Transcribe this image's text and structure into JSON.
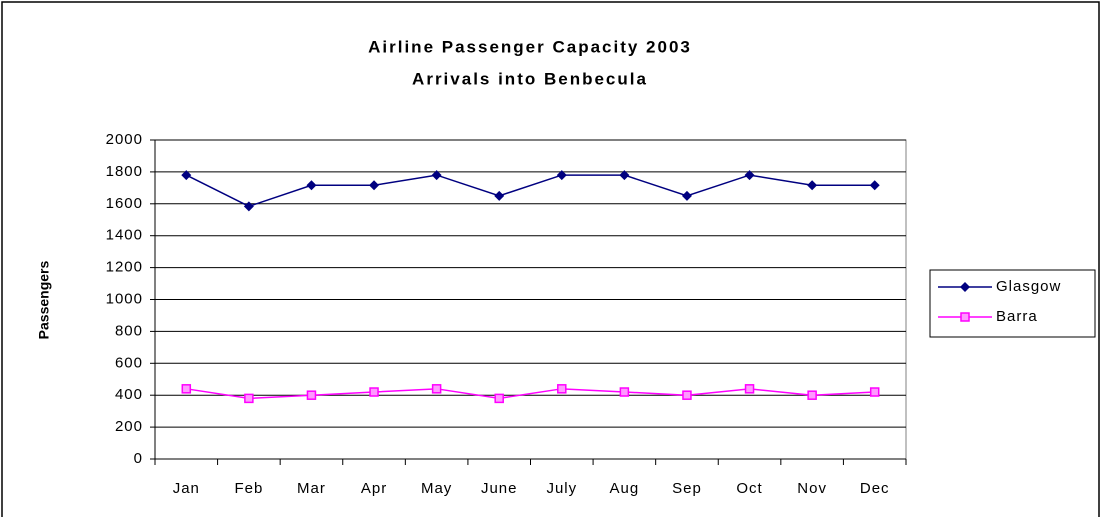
{
  "chart_data": {
    "type": "line",
    "title": "Airline Passenger Capacity 2003",
    "subtitle": "Arrivals into Benbecula",
    "y_label": "Passengers",
    "categories": [
      "Jan",
      "Feb",
      "Mar",
      "Apr",
      "May",
      "June",
      "July",
      "Aug",
      "Sep",
      "Oct",
      "Nov",
      "Dec"
    ],
    "series": [
      {
        "name": "Glasgow",
        "color": "#000080",
        "marker": "diamond",
        "values": [
          1780,
          1584,
          1716,
          1716,
          1780,
          1650,
          1780,
          1780,
          1650,
          1780,
          1716,
          1716
        ]
      },
      {
        "name": "Barra",
        "color": "#ff00ff",
        "marker": "square",
        "values": [
          440,
          380,
          400,
          420,
          440,
          380,
          440,
          420,
          400,
          440,
          400,
          420
        ]
      }
    ],
    "ylim": [
      0,
      2000
    ],
    "yticks": [
      0,
      200,
      400,
      600,
      800,
      1000,
      1200,
      1400,
      1600,
      1800,
      2000
    ],
    "grid": true,
    "legend": "right"
  }
}
